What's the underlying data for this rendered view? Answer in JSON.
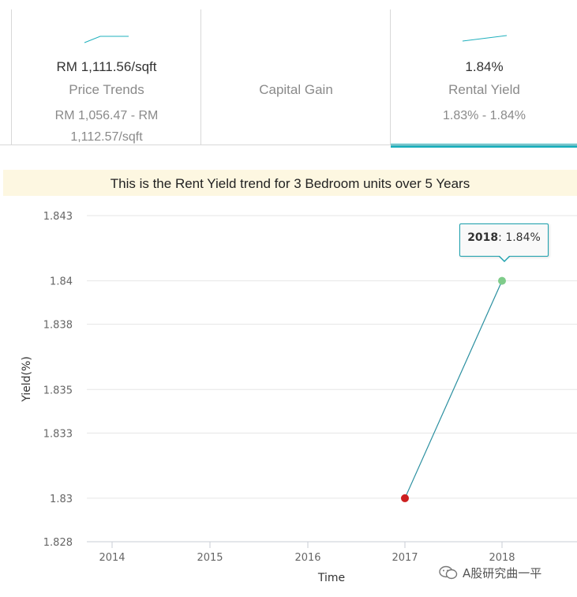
{
  "tabs": [
    {
      "value": "RM 1,111.56/sqft",
      "label": "Price Trends",
      "range": "RM 1,056.47 - RM 1,112.57/sqft"
    },
    {
      "value": "",
      "label": "Capital Gain",
      "range": ""
    },
    {
      "value": "1.84%",
      "label": "Rental Yield",
      "range": "1.83% - 1.84%"
    }
  ],
  "caption": "This is the Rent Yield trend for 3 Bedroom units over 5 Years",
  "tooltip": {
    "year": "2018",
    "sep": ": ",
    "value": "1.84%"
  },
  "watermark": {
    "text": "A股研究曲一平"
  },
  "colors": {
    "accent": "#1fb0bd",
    "line": "#2a8fa0",
    "point_low": "#cc2020",
    "point_high": "#7fcc8a",
    "grid": "#e6e6e6"
  },
  "chart_data": {
    "type": "line",
    "title": "",
    "xlabel": "Time",
    "ylabel": "Yield(%)",
    "categories": [
      "2014",
      "2015",
      "2016",
      "2017",
      "2018"
    ],
    "y_ticks": [
      "1.843",
      "1.84",
      "1.838",
      "1.835",
      "1.833",
      "1.83",
      "1.828"
    ],
    "ylim": [
      1.828,
      1.843
    ],
    "series": [
      {
        "values": [
          null,
          null,
          null,
          1.83,
          1.84
        ]
      }
    ],
    "grid": true
  }
}
